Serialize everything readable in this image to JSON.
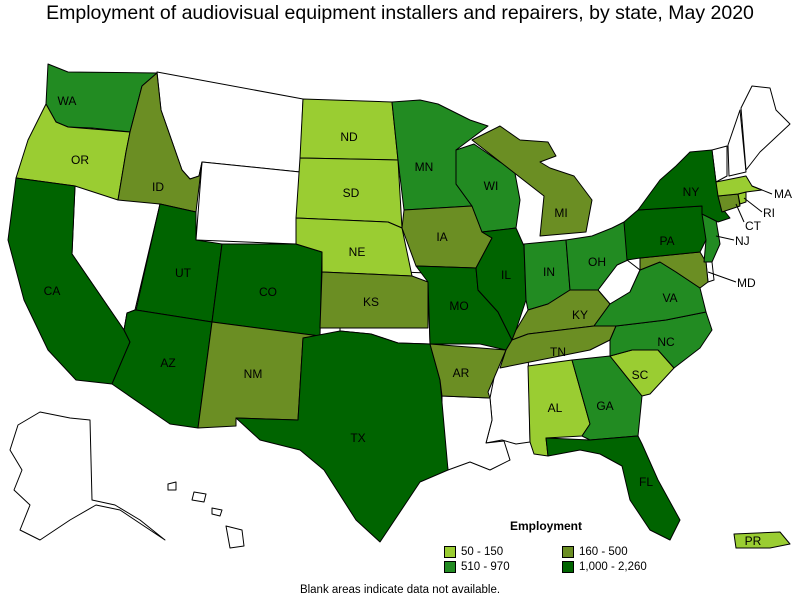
{
  "title": "Employment of audiovisual equipment installers and repairers, by state, May 2020",
  "legend": {
    "title": "Employment",
    "items": [
      {
        "label": "50 - 150",
        "color": "#9acd32"
      },
      {
        "label": "160 - 500",
        "color": "#6b8e23"
      },
      {
        "label": "510 - 970",
        "color": "#228b22"
      },
      {
        "label": "1,000 - 2,260",
        "color": "#006400"
      }
    ]
  },
  "note": "Blank areas indicate data not available.",
  "states": [
    {
      "abbr": "WA",
      "bin": "510 - 970",
      "color": "#228b22"
    },
    {
      "abbr": "OR",
      "bin": "50 - 150",
      "color": "#9acd32"
    },
    {
      "abbr": "CA",
      "bin": "1,000 - 2,260",
      "color": "#006400"
    },
    {
      "abbr": "ID",
      "bin": "160 - 500",
      "color": "#6b8e23"
    },
    {
      "abbr": "UT",
      "bin": "1,000 - 2,260",
      "color": "#006400"
    },
    {
      "abbr": "AZ",
      "bin": "1,000 - 2,260",
      "color": "#006400"
    },
    {
      "abbr": "CO",
      "bin": "1,000 - 2,260",
      "color": "#006400"
    },
    {
      "abbr": "NM",
      "bin": "160 - 500",
      "color": "#6b8e23"
    },
    {
      "abbr": "ND",
      "bin": "50 - 150",
      "color": "#9acd32"
    },
    {
      "abbr": "SD",
      "bin": "50 - 150",
      "color": "#9acd32"
    },
    {
      "abbr": "NE",
      "bin": "50 - 150",
      "color": "#9acd32"
    },
    {
      "abbr": "KS",
      "bin": "160 - 500",
      "color": "#6b8e23"
    },
    {
      "abbr": "TX",
      "bin": "1,000 - 2,260",
      "color": "#006400"
    },
    {
      "abbr": "MN",
      "bin": "510 - 970",
      "color": "#228b22"
    },
    {
      "abbr": "IA",
      "bin": "160 - 500",
      "color": "#6b8e23"
    },
    {
      "abbr": "MO",
      "bin": "1,000 - 2,260",
      "color": "#006400"
    },
    {
      "abbr": "AR",
      "bin": "160 - 500",
      "color": "#6b8e23"
    },
    {
      "abbr": "WI",
      "bin": "510 - 970",
      "color": "#228b22"
    },
    {
      "abbr": "IL",
      "bin": "1,000 - 2,260",
      "color": "#006400"
    },
    {
      "abbr": "MI",
      "bin": "160 - 500",
      "color": "#6b8e23"
    },
    {
      "abbr": "IN",
      "bin": "510 - 970",
      "color": "#228b22"
    },
    {
      "abbr": "OH",
      "bin": "510 - 970",
      "color": "#228b22"
    },
    {
      "abbr": "KY",
      "bin": "160 - 500",
      "color": "#6b8e23"
    },
    {
      "abbr": "TN",
      "bin": "160 - 500",
      "color": "#6b8e23"
    },
    {
      "abbr": "AL",
      "bin": "50 - 150",
      "color": "#9acd32"
    },
    {
      "abbr": "GA",
      "bin": "510 - 970",
      "color": "#228b22"
    },
    {
      "abbr": "FL",
      "bin": "1,000 - 2,260",
      "color": "#006400"
    },
    {
      "abbr": "SC",
      "bin": "50 - 150",
      "color": "#9acd32"
    },
    {
      "abbr": "NC",
      "bin": "510 - 970",
      "color": "#228b22"
    },
    {
      "abbr": "VA",
      "bin": "510 - 970",
      "color": "#228b22"
    },
    {
      "abbr": "PA",
      "bin": "1,000 - 2,260",
      "color": "#006400"
    },
    {
      "abbr": "NY",
      "bin": "1,000 - 2,260",
      "color": "#006400"
    },
    {
      "abbr": "NJ",
      "bin": "510 - 970",
      "color": "#228b22"
    },
    {
      "abbr": "MD",
      "bin": "160 - 500",
      "color": "#6b8e23"
    },
    {
      "abbr": "CT",
      "bin": "160 - 500",
      "color": "#6b8e23"
    },
    {
      "abbr": "RI",
      "bin": "50 - 150",
      "color": "#9acd32"
    },
    {
      "abbr": "MA",
      "bin": "50 - 150",
      "color": "#9acd32"
    },
    {
      "abbr": "PR",
      "bin": "50 - 150",
      "color": "#9acd32"
    }
  ]
}
